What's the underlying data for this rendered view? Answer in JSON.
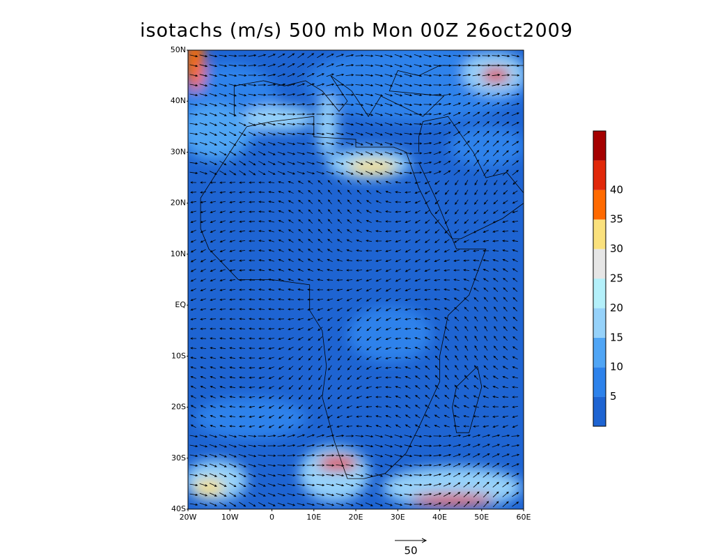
{
  "title": "isotachs (m/s) 500 mb Mon 00Z 26oct2009",
  "map": {
    "lat_labels": [
      "50N",
      "40N",
      "30N",
      "20N",
      "10N",
      "EQ",
      "10S",
      "20S",
      "30S",
      "40S"
    ],
    "lon_labels": [
      "20W",
      "10W",
      "0",
      "10E",
      "20E",
      "30E",
      "40E",
      "50E",
      "60E"
    ]
  },
  "colorbar": {
    "colors": [
      "#1e64d2",
      "#2d82eb",
      "#50a5f5",
      "#96d2fa",
      "#b4f0fa",
      "#e6e6e6",
      "#fae17d",
      "#ff6a00",
      "#e1280a",
      "#a50000"
    ],
    "labels": [
      5,
      10,
      15,
      20,
      25,
      30,
      35,
      40
    ]
  },
  "reference_vector": 50
}
